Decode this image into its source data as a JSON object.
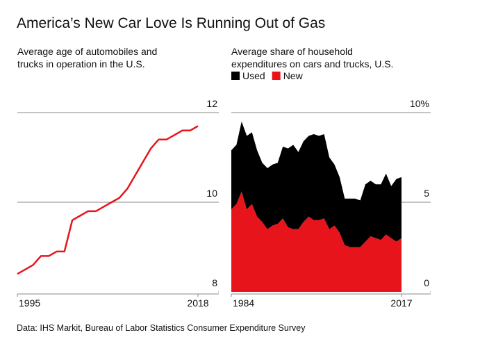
{
  "title": "America’s New Car Love Is Running Out of Gas",
  "source": "Data: IHS Markit, Bureau of Labor Statistics Consumer Expenditure Survey",
  "chart_data": [
    {
      "type": "line",
      "subtitle": [
        "Average age of automobiles and",
        "trucks in operation in the U.S."
      ],
      "x": [
        1995,
        1996,
        1997,
        1998,
        1999,
        2000,
        2001,
        2002,
        2003,
        2004,
        2005,
        2006,
        2007,
        2008,
        2009,
        2010,
        2011,
        2012,
        2013,
        2014,
        2015,
        2016,
        2017,
        2018
      ],
      "series": [
        {
          "color": "#e8141b",
          "values": [
            8.4,
            8.5,
            8.6,
            8.8,
            8.8,
            8.9,
            8.9,
            9.6,
            9.7,
            9.8,
            9.8,
            9.9,
            10.0,
            10.1,
            10.3,
            10.6,
            10.9,
            11.2,
            11.4,
            11.4,
            11.5,
            11.6,
            11.6,
            11.7
          ]
        }
      ],
      "xlim": [
        1995,
        2018
      ],
      "xticks": [
        1995,
        2018
      ],
      "ylim": [
        8,
        12
      ],
      "yticks": [
        12,
        10,
        8
      ],
      "grid": true
    },
    {
      "type": "stacked_area",
      "subtitle": [
        "Average share of household",
        "expenditures on cars and trucks, U.S."
      ],
      "x": [
        1984,
        1985,
        1986,
        1987,
        1988,
        1989,
        1990,
        1991,
        1992,
        1993,
        1994,
        1995,
        1996,
        1997,
        1998,
        1999,
        2000,
        2001,
        2002,
        2003,
        2004,
        2005,
        2006,
        2007,
        2008,
        2009,
        2010,
        2011,
        2012,
        2013,
        2014,
        2015,
        2016,
        2017
      ],
      "series": [
        {
          "name": "Used",
          "color": "#000000",
          "values": [
            3.3,
            3.3,
            3.9,
            4.1,
            4.0,
            3.7,
            3.3,
            3.4,
            3.4,
            3.4,
            4.0,
            4.4,
            4.7,
            4.3,
            4.5,
            4.5,
            4.8,
            4.7,
            4.7,
            4.0,
            3.4,
            3.1,
            2.6,
            2.7,
            2.7,
            2.6,
            3.2,
            3.1,
            3.0,
            3.1,
            3.4,
            2.9,
            3.5,
            3.4
          ]
        },
        {
          "name": "New",
          "color": "#e8141b",
          "values": [
            4.6,
            4.9,
            5.6,
            4.6,
            4.9,
            4.2,
            3.9,
            3.5,
            3.7,
            3.8,
            4.1,
            3.6,
            3.5,
            3.5,
            3.9,
            4.2,
            4.0,
            4.0,
            4.1,
            3.5,
            3.7,
            3.3,
            2.6,
            2.5,
            2.5,
            2.5,
            2.8,
            3.1,
            3.0,
            2.9,
            3.2,
            3.0,
            2.8,
            3.0
          ]
        }
      ],
      "xlim": [
        1984,
        2017
      ],
      "xticks": [
        1984,
        2017
      ],
      "ylim": [
        0,
        10
      ],
      "yticks": [
        {
          "value": 10,
          "label": "10%"
        },
        5,
        0
      ],
      "grid": true,
      "legend": "top-left"
    }
  ]
}
